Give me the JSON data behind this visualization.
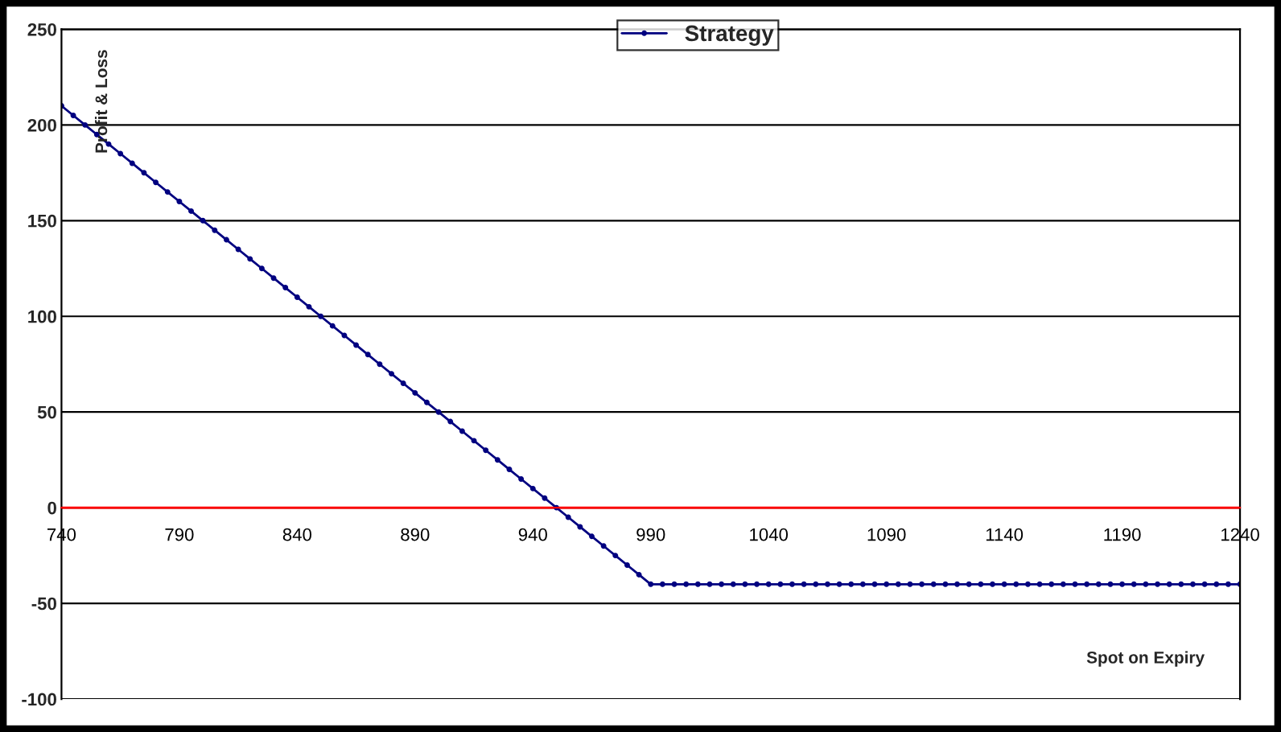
{
  "chart_data": {
    "type": "line",
    "xlabel": "Spot on Expiry",
    "ylabel": "Profit & Loss",
    "x": [
      740,
      745,
      750,
      755,
      760,
      765,
      770,
      775,
      780,
      785,
      790,
      795,
      800,
      805,
      810,
      815,
      820,
      825,
      830,
      835,
      840,
      845,
      850,
      855,
      860,
      865,
      870,
      875,
      880,
      885,
      890,
      895,
      900,
      905,
      910,
      915,
      920,
      925,
      930,
      935,
      940,
      945,
      950,
      955,
      960,
      965,
      970,
      975,
      980,
      985,
      990,
      995,
      1000,
      1005,
      1010,
      1015,
      1020,
      1025,
      1030,
      1035,
      1040,
      1045,
      1050,
      1055,
      1060,
      1065,
      1070,
      1075,
      1080,
      1085,
      1090,
      1095,
      1100,
      1105,
      1110,
      1115,
      1120,
      1125,
      1130,
      1135,
      1140,
      1145,
      1150,
      1155,
      1160,
      1165,
      1170,
      1175,
      1180,
      1185,
      1190,
      1195,
      1200,
      1205,
      1210,
      1215,
      1220,
      1225,
      1230,
      1235,
      1240
    ],
    "series": [
      {
        "name": "Strategy",
        "color": "#000080",
        "values": [
          210,
          205,
          200,
          195,
          190,
          185,
          180,
          175,
          170,
          165,
          160,
          155,
          150,
          145,
          140,
          135,
          130,
          125,
          120,
          115,
          110,
          105,
          100,
          95,
          90,
          85,
          80,
          75,
          70,
          65,
          60,
          55,
          50,
          45,
          40,
          35,
          30,
          25,
          20,
          15,
          10,
          5,
          0,
          -5,
          -10,
          -15,
          -20,
          -25,
          -30,
          -35,
          -40,
          -40,
          -40,
          -40,
          -40,
          -40,
          -40,
          -40,
          -40,
          -40,
          -40,
          -40,
          -40,
          -40,
          -40,
          -40,
          -40,
          -40,
          -40,
          -40,
          -40,
          -40,
          -40,
          -40,
          -40,
          -40,
          -40,
          -40,
          -40,
          -40,
          -40,
          -40,
          -40,
          -40,
          -40,
          -40,
          -40,
          -40,
          -40,
          -40,
          -40,
          -40,
          -40,
          -40,
          -40,
          -40,
          -40,
          -40,
          -40,
          -40,
          -40
        ]
      }
    ],
    "xlim": [
      740,
      1240
    ],
    "xticks": [
      740,
      790,
      840,
      890,
      940,
      990,
      1040,
      1090,
      1140,
      1190,
      1240
    ],
    "ylim": [
      -100,
      250
    ],
    "yticks": [
      -100,
      -50,
      0,
      50,
      100,
      150,
      200,
      250
    ],
    "ref_lines": [
      {
        "axis": "y",
        "value": 0,
        "color": "#ff0000"
      }
    ],
    "grid": "y",
    "legend": "top",
    "marker": "circle",
    "line_style": "solid"
  }
}
